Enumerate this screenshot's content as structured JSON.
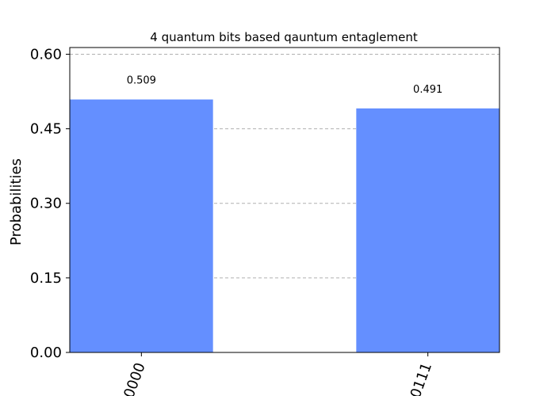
{
  "chart_data": {
    "type": "bar",
    "title": "4 quantum bits based qauntum entaglement",
    "xlabel": "",
    "ylabel": "Probabilities",
    "categories": [
      "0000",
      "0111"
    ],
    "values": [
      0.509,
      0.491
    ],
    "value_labels": [
      "0.509",
      "0.491"
    ],
    "yticks": [
      0.0,
      0.15,
      0.3,
      0.45,
      0.6
    ],
    "ytick_labels": [
      "0.00",
      "0.15",
      "0.30",
      "0.45",
      "0.60"
    ],
    "ylim": [
      0,
      0.6
    ],
    "grid": true,
    "bar_color": "#648FFF"
  }
}
